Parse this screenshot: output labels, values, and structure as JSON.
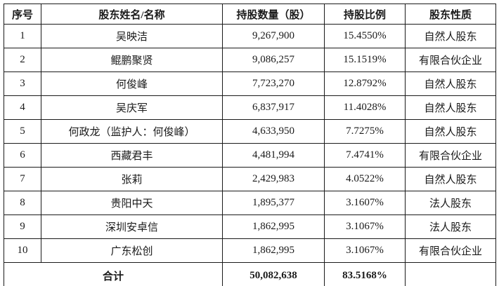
{
  "table": {
    "headers": {
      "no": "序号",
      "name": "股东姓名/名称",
      "shares": "持股数量（股）",
      "ratio": "持股比例",
      "nature": "股东性质"
    },
    "rows": [
      {
        "no": "1",
        "name": "吴映洁",
        "shares": "9,267,900",
        "ratio": "15.4550%",
        "nature": "自然人股东"
      },
      {
        "no": "2",
        "name": "鲲鹏聚贤",
        "shares": "9,086,257",
        "ratio": "15.1519%",
        "nature": "有限合伙企业"
      },
      {
        "no": "3",
        "name": "何俊峰",
        "shares": "7,723,270",
        "ratio": "12.8792%",
        "nature": "自然人股东"
      },
      {
        "no": "4",
        "name": "吴庆军",
        "shares": "6,837,917",
        "ratio": "11.4028%",
        "nature": "自然人股东"
      },
      {
        "no": "5",
        "name": "何政龙（监护人：何俊峰）",
        "shares": "4,633,950",
        "ratio": "7.7275%",
        "nature": "自然人股东"
      },
      {
        "no": "6",
        "name": "西藏君丰",
        "shares": "4,481,994",
        "ratio": "7.4741%",
        "nature": "有限合伙企业"
      },
      {
        "no": "7",
        "name": "张莉",
        "shares": "2,429,983",
        "ratio": "4.0522%",
        "nature": "自然人股东"
      },
      {
        "no": "8",
        "name": "贵阳中天",
        "shares": "1,895,377",
        "ratio": "3.1607%",
        "nature": "法人股东"
      },
      {
        "no": "9",
        "name": "深圳安卓信",
        "shares": "1,862,995",
        "ratio": "3.1067%",
        "nature": "法人股东"
      },
      {
        "no": "10",
        "name": "广东松创",
        "shares": "1,862,995",
        "ratio": "3.1067%",
        "nature": "有限合伙企业"
      }
    ],
    "total": {
      "label": "合计",
      "shares": "50,082,638",
      "ratio": "83.5168%",
      "nature": ""
    }
  },
  "colors": {
    "border": "#1a1a1a",
    "text": "#1a1a1a",
    "background": "#ffffff"
  }
}
